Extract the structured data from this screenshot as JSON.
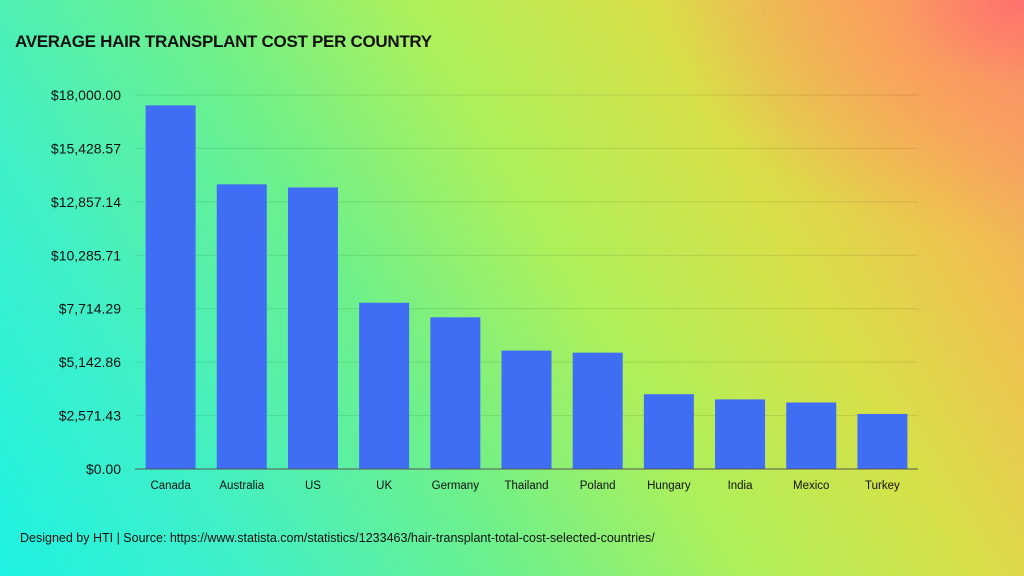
{
  "chart_data": {
    "type": "bar",
    "title": "AVERAGE HAIR TRANSPLANT COST PER COUNTRY",
    "xlabel": "",
    "ylabel": "",
    "categories": [
      "Canada",
      "Australia",
      "US",
      "UK",
      "Germany",
      "Thailand",
      "Poland",
      "Hungary",
      "India",
      "Mexico",
      "Turkey"
    ],
    "values": [
      17500,
      13700,
      13550,
      8000,
      7300,
      5700,
      5600,
      3600,
      3350,
      3200,
      2650
    ],
    "ylim": [
      0,
      18000
    ],
    "yticks": [
      0,
      2571.43,
      5142.86,
      7714.29,
      10285.71,
      12857.14,
      15428.57,
      18000
    ],
    "ytick_labels": [
      "$0.00",
      "$2,571.43",
      "$5,142.86",
      "$7,714.29",
      "$10,285.71",
      "$12,857.14",
      "$15,428.57",
      "$18,000.00"
    ],
    "bar_color": "#3f6ef5",
    "grid": true,
    "legend": "none"
  },
  "footer": {
    "credit": "Designed by HTI  | Source: https://www.statista.com/statistics/1233463/hair-transplant-total-cost-selected-countries/"
  }
}
